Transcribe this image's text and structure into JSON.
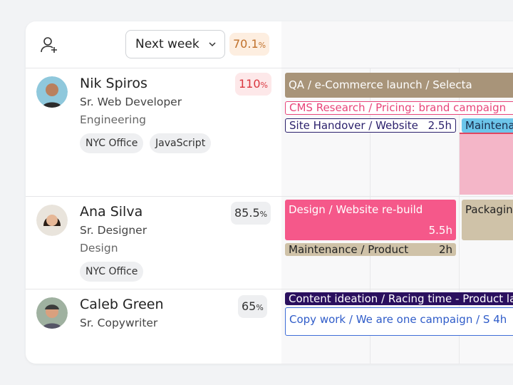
{
  "header": {
    "period": "Next week",
    "utilization": {
      "value": "70.1",
      "unit": "%"
    }
  },
  "people": [
    {
      "name": "Nik Spiros",
      "role": "Sr. Web Developer",
      "department": "Engineering",
      "tags": [
        "NYC Office",
        "JavaScript"
      ],
      "utilization": {
        "value": "110",
        "unit": "%"
      },
      "bookings": [
        {
          "title": "QA / e-Commerce launch / Selecta"
        },
        {
          "title": "CMS Research / Pricing: brand campaign"
        },
        {
          "title": "Site Handover / Website",
          "hours": "2.5h"
        },
        {
          "title": "Maintena"
        }
      ]
    },
    {
      "name": "Ana Silva",
      "role": "Sr. Designer",
      "department": "Design",
      "tags": [
        "NYC Office"
      ],
      "utilization": {
        "value": "85.5",
        "unit": "%"
      },
      "bookings": [
        {
          "title": "Design / Website re-build",
          "hours": "5.5h"
        },
        {
          "title": "Packagin"
        },
        {
          "title": "Maintenance / Product",
          "hours": "2h"
        }
      ]
    },
    {
      "name": "Caleb Green",
      "role": "Sr. Copywriter",
      "utilization": {
        "value": "65",
        "unit": "%"
      },
      "bookings": [
        {
          "title": "Content ideation / Racing time - Product la"
        },
        {
          "title": "Copy work / We are one campaign / S",
          "hours": "4h"
        }
      ]
    }
  ]
}
